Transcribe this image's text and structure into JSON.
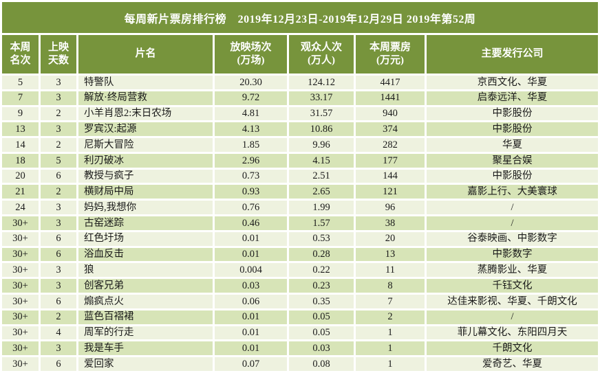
{
  "colors": {
    "header_green": "#77943C",
    "row_light": "#EEF2DF",
    "row_dark": "#D7E4B7",
    "text": "#1A1A1A",
    "header_text": "#FFFFFF"
  },
  "chart_data": {
    "type": "table",
    "title": "每周新片票房排行榜　2019年12月23日-2019年12月29日 2019年第52周",
    "columns": [
      "本周\n名次",
      "上映\n天数",
      "片名",
      "放映场次\n(万场)",
      "观众人次\n(万人)",
      "本周票房\n(万元)",
      "主要发行公司"
    ],
    "rows": [
      [
        "5",
        "3",
        "特警队",
        "20.30",
        "124.12",
        "4417",
        "京西文化、华夏"
      ],
      [
        "7",
        "3",
        "解放·终局营救",
        "9.72",
        "33.17",
        "1441",
        "启泰远洋、华夏"
      ],
      [
        "9",
        "2",
        "小羊肖恩2:末日农场",
        "4.81",
        "31.57",
        "940",
        "中影股份"
      ],
      [
        "13",
        "3",
        "罗宾汉:起源",
        "4.13",
        "10.86",
        "374",
        "中影股份"
      ],
      [
        "14",
        "2",
        "尼斯大冒险",
        "1.85",
        "9.96",
        "282",
        "华夏"
      ],
      [
        "18",
        "5",
        "利刃破冰",
        "2.96",
        "4.15",
        "177",
        "聚星合娱"
      ],
      [
        "20",
        "6",
        "教授与疯子",
        "0.73",
        "2.51",
        "144",
        "中影股份"
      ],
      [
        "21",
        "2",
        "横财局中局",
        "0.93",
        "2.65",
        "121",
        "嘉影上行、大美寰球"
      ],
      [
        "24",
        "3",
        "妈妈,我想你",
        "0.76",
        "1.99",
        "96",
        "/"
      ],
      [
        "30+",
        "3",
        "古窑迷踪",
        "0.46",
        "1.57",
        "38",
        "/"
      ],
      [
        "30+",
        "6",
        "红色圩场",
        "0.01",
        "0.53",
        "20",
        "谷泰映画、中影数字"
      ],
      [
        "30+",
        "6",
        "浴血反击",
        "0.01",
        "0.28",
        "13",
        "中影数字"
      ],
      [
        "30+",
        "3",
        "狼",
        "0.004",
        "0.22",
        "11",
        "蒸腾影业、华夏"
      ],
      [
        "30+",
        "3",
        "创客兄弟",
        "0.03",
        "0.23",
        "8",
        "千钰文化"
      ],
      [
        "30+",
        "6",
        "煽疯点火",
        "0.06",
        "0.35",
        "7",
        "达佳来影视、华夏、千朗文化"
      ],
      [
        "30+",
        "2",
        "蓝色百褶裙",
        "0.01",
        "0.05",
        "2",
        "/"
      ],
      [
        "30+",
        "4",
        "周军的行走",
        "0.01",
        "0.05",
        "1",
        "菲儿幕文化、东阳四月天"
      ],
      [
        "30+",
        "3",
        "我是车手",
        "0.01",
        "0.03",
        "1",
        "千朗文化"
      ],
      [
        "30+",
        "6",
        "爱回家",
        "0.07",
        "0.08",
        "1",
        "爱奇艺、华夏"
      ]
    ]
  }
}
